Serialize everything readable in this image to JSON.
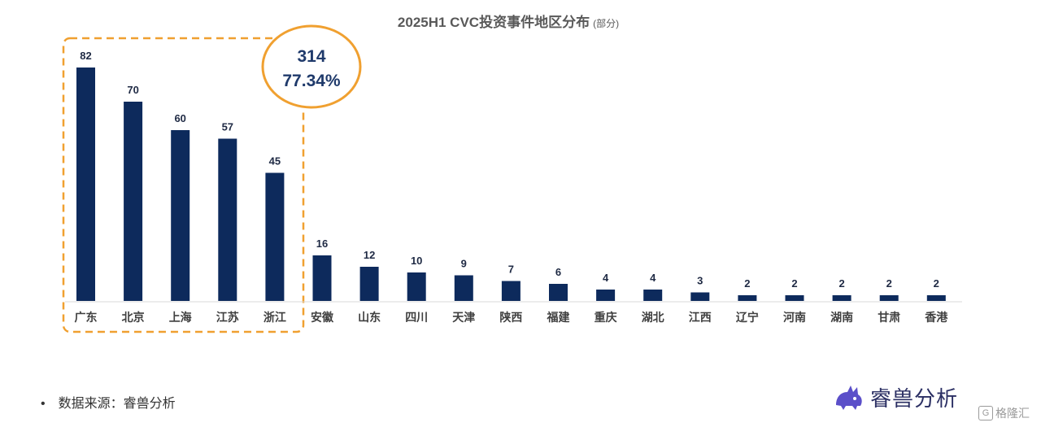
{
  "title": "2025H1 CVC投资事件地区分布",
  "subtitle": "(部分)",
  "highlight": {
    "count": "314",
    "percent": "77.34%"
  },
  "source": {
    "bullet": "•",
    "text": "数据来源：睿兽分析"
  },
  "logo": {
    "text": "睿兽分析",
    "icon": "beast-logo-icon"
  },
  "watermark": {
    "glyph": "G",
    "text": "格隆汇"
  },
  "colors": {
    "bar": "#0d2a5c",
    "highlight_border": "#f0a030",
    "label": "#1f2a44"
  },
  "chart_data": {
    "type": "bar",
    "title": "2025H1 CVC投资事件地区分布",
    "subtitle": "(部分)",
    "categories": [
      "广东",
      "北京",
      "上海",
      "江苏",
      "浙江",
      "安徽",
      "山东",
      "四川",
      "天津",
      "陕西",
      "福建",
      "重庆",
      "湖北",
      "江西",
      "辽宁",
      "河南",
      "湖南",
      "甘肃",
      "香港"
    ],
    "values": [
      82,
      70,
      60,
      57,
      45,
      16,
      12,
      10,
      9,
      7,
      6,
      4,
      4,
      3,
      2,
      2,
      2,
      2,
      2
    ],
    "ylim": [
      0,
      82
    ],
    "grid": false,
    "highlighted_categories": [
      "广东",
      "北京",
      "上海",
      "江苏",
      "浙江"
    ]
  }
}
